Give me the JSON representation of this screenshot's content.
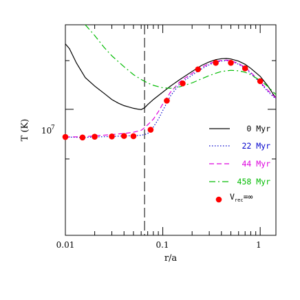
{
  "chart_data": {
    "type": "line",
    "xlabel": "r/a",
    "ylabel": "T (K)",
    "x_scale": "log",
    "y_scale": "log",
    "xlim": [
      0.01,
      1.45
    ],
    "ylim": [
      0.95,
      1.035
    ],
    "x_tick_labels": [
      "0.01",
      "0.1",
      "1"
    ],
    "y_tick_label": "10",
    "y_tick_exponent": "7",
    "reference_line_x": 0.065,
    "series": [
      {
        "name": "0 Myr",
        "color": "#000000",
        "dash": "solid",
        "x": [
          0.01,
          0.011,
          0.013,
          0.016,
          0.02,
          0.025,
          0.03,
          0.035,
          0.04,
          0.045,
          0.05,
          0.055,
          0.06,
          0.065,
          0.07,
          0.08,
          0.1,
          0.12,
          0.15,
          0.2,
          0.25,
          0.3,
          0.35,
          0.4,
          0.45,
          0.5,
          0.6,
          0.7,
          0.8,
          1.0,
          1.2,
          1.45
        ],
        "y": [
          1.027,
          1.025,
          1.019,
          1.013,
          1.0095,
          1.0065,
          1.004,
          1.0025,
          1.0015,
          1.0009,
          1.0004,
          1.0001,
          0.9999,
          1.0006,
          1.0019,
          1.004,
          1.007,
          1.0095,
          1.0122,
          1.0155,
          1.018,
          1.0195,
          1.0204,
          1.0208,
          1.0209,
          1.0207,
          1.0198,
          1.0185,
          1.0168,
          1.0135,
          1.0095,
          1.0045
        ]
      },
      {
        "name": "22 Myr",
        "color": "#0000cc",
        "dash": "dotted",
        "x": [
          0.01,
          0.015,
          0.02,
          0.03,
          0.04,
          0.05,
          0.06,
          0.065,
          0.07,
          0.075,
          0.08,
          0.09,
          0.1,
          0.12,
          0.15,
          0.2,
          0.25,
          0.3,
          0.35,
          0.4,
          0.45,
          0.5,
          0.6,
          0.7,
          0.8,
          1.0,
          1.2,
          1.45
        ],
        "y": [
          0.9888,
          0.9886,
          0.9888,
          0.989,
          0.9892,
          0.9893,
          0.9895,
          0.9898,
          0.9902,
          0.9912,
          0.9928,
          0.996,
          0.9995,
          1.0055,
          1.0105,
          1.014,
          1.0166,
          1.0183,
          1.0194,
          1.0198,
          1.02,
          1.0198,
          1.0185,
          1.0168,
          1.0148,
          1.0108,
          1.0072,
          1.0042
        ]
      },
      {
        "name": "44 Myr",
        "color": "#dd00dd",
        "dash": "dashed",
        "x": [
          0.01,
          0.015,
          0.02,
          0.03,
          0.04,
          0.05,
          0.06,
          0.065,
          0.07,
          0.08,
          0.09,
          0.1,
          0.12,
          0.15,
          0.2,
          0.25,
          0.3,
          0.35,
          0.4,
          0.45,
          0.5,
          0.6,
          0.7,
          0.8,
          1.0,
          1.2,
          1.45
        ],
        "y": [
          0.9888,
          0.9889,
          0.9892,
          0.9898,
          0.9902,
          0.9907,
          0.9915,
          0.9925,
          0.9937,
          0.996,
          0.999,
          1.0022,
          1.007,
          1.0113,
          1.0147,
          1.0172,
          1.0188,
          1.0197,
          1.0201,
          1.0202,
          1.02,
          1.0188,
          1.0172,
          1.0152,
          1.0112,
          1.0077,
          1.0046
        ]
      },
      {
        "name": "458 Myr",
        "color": "#00bb00",
        "dash": "dashdot",
        "x": [
          0.016,
          0.02,
          0.025,
          0.03,
          0.04,
          0.05,
          0.06,
          0.07,
          0.08,
          0.1,
          0.12,
          0.15,
          0.2,
          0.25,
          0.3,
          0.35,
          0.4,
          0.5,
          0.6,
          0.7,
          0.8,
          1.0,
          1.2,
          1.45
        ],
        "y": [
          1.035,
          1.0305,
          1.0255,
          1.022,
          1.0175,
          1.0142,
          1.0122,
          1.0108,
          1.0098,
          1.0088,
          1.0086,
          1.0092,
          1.0108,
          1.0125,
          1.0138,
          1.0148,
          1.0155,
          1.016,
          1.0158,
          1.0152,
          1.0142,
          1.0118,
          1.0093,
          1.006
        ]
      }
    ],
    "markers": {
      "name": "V_rec=∞",
      "label_main": "V",
      "label_sub": "rec",
      "label_tail": "=∞",
      "color": "#ff0000",
      "x": [
        0.01,
        0.015,
        0.02,
        0.03,
        0.04,
        0.05,
        0.075,
        0.11,
        0.16,
        0.23,
        0.35,
        0.5,
        0.7,
        1.0
      ],
      "y": [
        0.9888,
        0.9886,
        0.9889,
        0.989,
        0.9892,
        0.9891,
        0.9917,
        1.0035,
        1.0106,
        1.0164,
        1.0191,
        1.0191,
        1.0168,
        1.0115
      ]
    }
  }
}
